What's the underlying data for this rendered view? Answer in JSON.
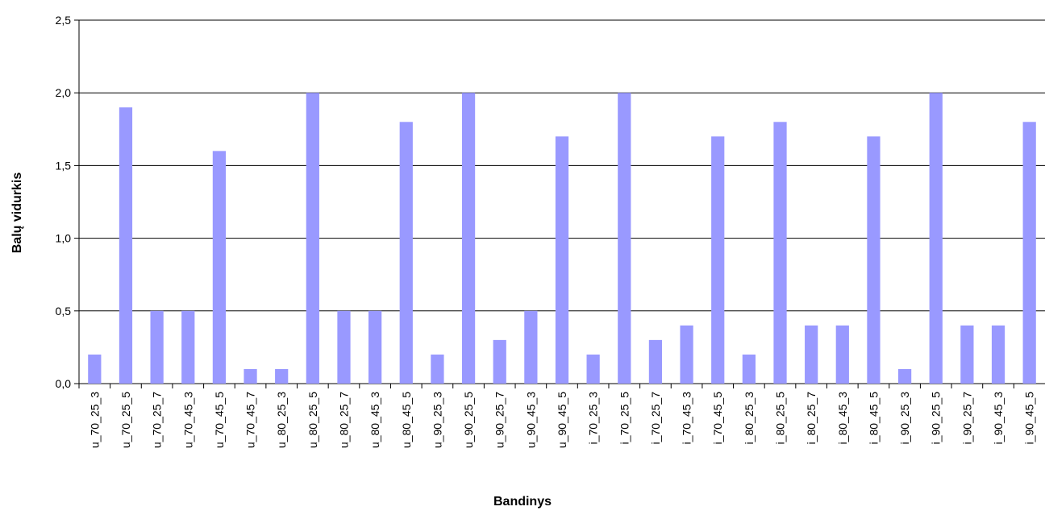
{
  "chart_data": {
    "type": "bar",
    "title": "",
    "xlabel": "Bandinys",
    "ylabel": "Balų vidurkis",
    "ylim": [
      0,
      2.5
    ],
    "yticks": [
      "0,0",
      "0,5",
      "1,0",
      "1,5",
      "2,0",
      "2,5"
    ],
    "grid": true,
    "legend": "none",
    "bar_color": "#9999ff",
    "categories": [
      "u_70_25_3",
      "u_70_25_5",
      "u_70_25_7",
      "u_70_45_3",
      "u_70_45_5",
      "u_70_45_7",
      "u_80_25_3",
      "u_80_25_5",
      "u_80_25_7",
      "u_80_45_3",
      "u_80_45_5",
      "u_90_25_3",
      "u_90_25_5",
      "u_90_25_7",
      "u_90_45_3",
      "u_90_45_5",
      "i_70_25_3",
      "i_70_25_5",
      "i_70_25_7",
      "i_70_45_3",
      "i_70_45_5",
      "i_80_25_3",
      "i_80_25_5",
      "i_80_25_7",
      "i_80_45_3",
      "i_80_45_5",
      "i_90_25_3",
      "i_90_25_5",
      "i_90_25_7",
      "i_90_45_3",
      "i_90_45_5"
    ],
    "values": [
      0.2,
      1.9,
      0.5,
      0.5,
      1.6,
      0.1,
      0.1,
      2.0,
      0.5,
      0.5,
      1.8,
      0.2,
      2.0,
      0.3,
      0.5,
      1.7,
      0.2,
      2.0,
      0.3,
      0.4,
      1.7,
      0.2,
      1.8,
      0.4,
      0.4,
      1.7,
      0.1,
      2.0,
      0.4,
      0.4,
      1.8
    ]
  }
}
